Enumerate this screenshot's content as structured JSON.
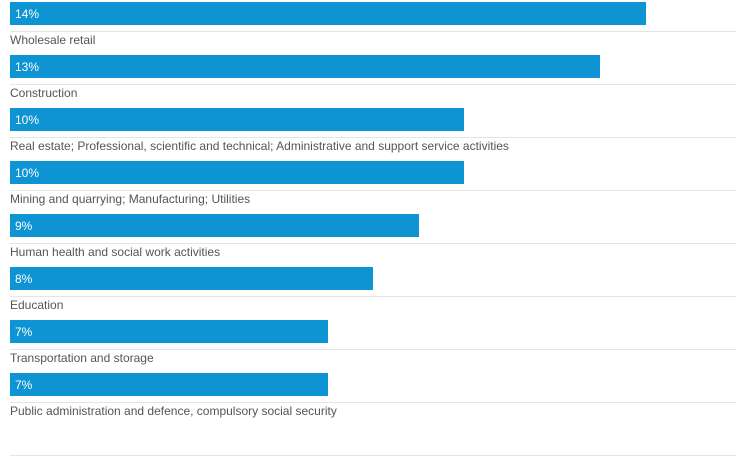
{
  "chart_data": {
    "type": "bar",
    "orientation": "horizontal",
    "categories": [
      "",
      "Wholesale retail",
      "Construction",
      "Real estate; Professional, scientific and technical; Administrative and support service activities",
      "Mining and quarrying; Manufacturing; Utilities",
      "Human health and social work activities",
      "Education",
      "Transportation and storage",
      "Public administration and defence, compulsory social security"
    ],
    "values": [
      14,
      13,
      10,
      10,
      9,
      8,
      7,
      7,
      null
    ],
    "value_labels": [
      "14%",
      "13%",
      "10%",
      "10%",
      "9%",
      "8%",
      "7%",
      "7%",
      ""
    ],
    "xlim": [
      0,
      16
    ],
    "bar_color": "#0e94d2",
    "grid": false,
    "legend": "none"
  }
}
